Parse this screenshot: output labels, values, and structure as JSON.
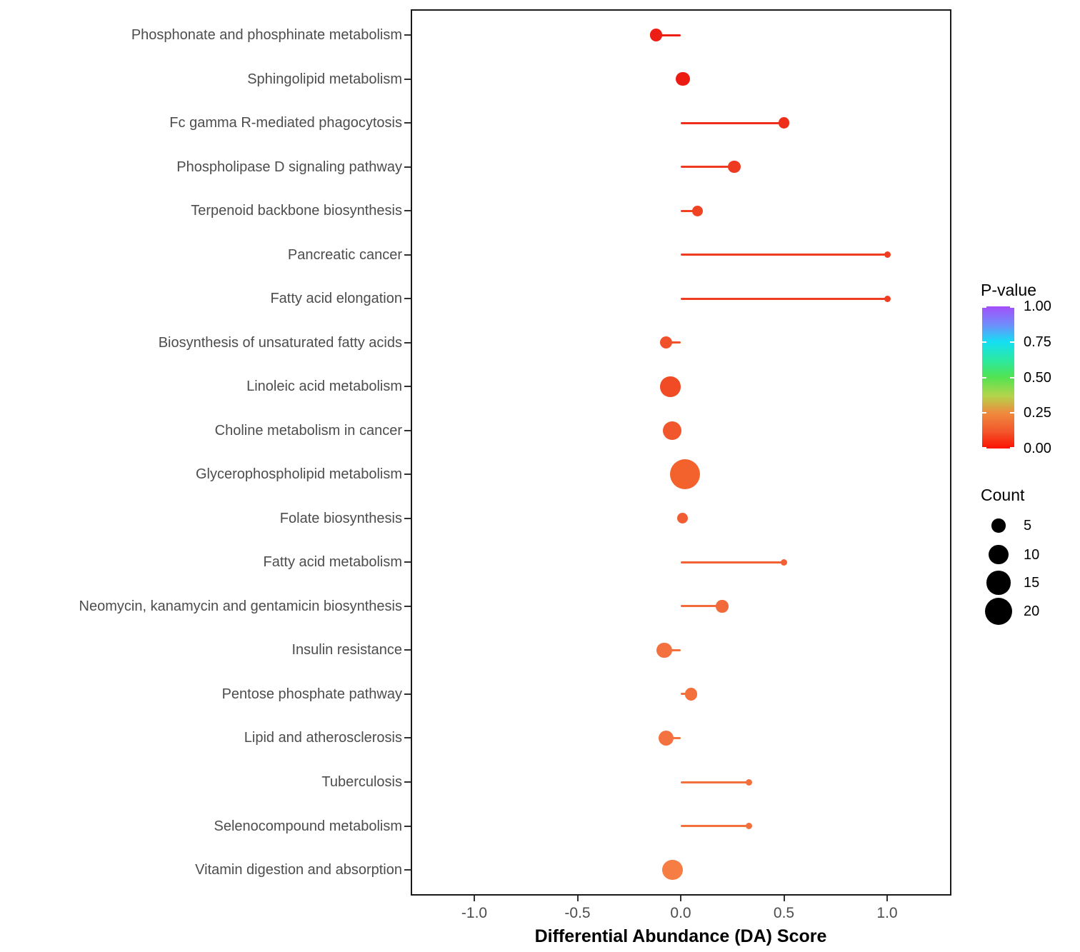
{
  "chart_data": {
    "type": "scatter",
    "style": "lollipop",
    "title": "",
    "xlabel": "Differential Abundance (DA) Score",
    "ylabel": "",
    "xlim": [
      -1.31,
      1.31
    ],
    "x_ticks": [
      -1.0,
      -0.5,
      0.0,
      0.5,
      1.0
    ],
    "x_tick_labels": [
      "-1.0",
      "-0.5",
      "0.0",
      "0.5",
      "1.0"
    ],
    "grid": false,
    "legend_position": "right",
    "rows": [
      {
        "pathway": "Phosphonate and phosphinate metabolism",
        "da_score": -0.12,
        "count": 4,
        "color": "#ed1e13"
      },
      {
        "pathway": "Sphingolipid metabolism",
        "da_score": 0.01,
        "count": 5,
        "color": "#ec1c12"
      },
      {
        "pathway": "Fc gamma R-mediated phagocytosis",
        "da_score": 0.5,
        "count": 3,
        "color": "#ee2d1a"
      },
      {
        "pathway": "Phospholipase D signaling pathway",
        "da_score": 0.26,
        "count": 4,
        "color": "#ee3a21"
      },
      {
        "pathway": "Terpenoid backbone biosynthesis",
        "da_score": 0.08,
        "count": 3,
        "color": "#ef4323"
      },
      {
        "pathway": "Pancreatic cancer",
        "da_score": 1.0,
        "count": 1,
        "color": "#f03c20"
      },
      {
        "pathway": "Fatty acid elongation",
        "da_score": 1.0,
        "count": 1,
        "color": "#f03c20"
      },
      {
        "pathway": "Biosynthesis of unsaturated fatty acids",
        "da_score": -0.07,
        "count": 4,
        "color": "#f0512a"
      },
      {
        "pathway": "Linoleic acid metabolism",
        "da_score": -0.05,
        "count": 11,
        "color": "#f04b25"
      },
      {
        "pathway": "Choline metabolism in cancer",
        "da_score": -0.04,
        "count": 9,
        "color": "#f1562c"
      },
      {
        "pathway": "Glycerophospholipid metabolism",
        "da_score": 0.02,
        "count": 24,
        "color": "#f3612c"
      },
      {
        "pathway": "Folate biosynthesis",
        "da_score": 0.01,
        "count": 3,
        "color": "#f15e33"
      },
      {
        "pathway": "Fatty acid metabolism",
        "da_score": 0.5,
        "count": 1,
        "color": "#f26134"
      },
      {
        "pathway": "Neomycin, kanamycin and gentamicin biosynthesis",
        "da_score": 0.2,
        "count": 4,
        "color": "#f2693a"
      },
      {
        "pathway": "Insulin resistance",
        "da_score": -0.08,
        "count": 6,
        "color": "#f4713f"
      },
      {
        "pathway": "Pentose phosphate pathway",
        "da_score": 0.05,
        "count": 4,
        "color": "#f36f3b"
      },
      {
        "pathway": "Lipid and atherosclerosis",
        "da_score": -0.07,
        "count": 6,
        "color": "#f47240"
      },
      {
        "pathway": "Tuberculosis",
        "da_score": 0.33,
        "count": 1,
        "color": "#f3703d"
      },
      {
        "pathway": "Selenocompound metabolism",
        "da_score": 0.33,
        "count": 1,
        "color": "#f3703d"
      },
      {
        "pathway": "Vitamin digestion and absorption",
        "da_score": -0.04,
        "count": 11,
        "color": "#f67e45"
      }
    ]
  },
  "legend": {
    "pvalue": {
      "title": "P-value",
      "tick_labels": [
        "1.00",
        "0.75",
        "0.50",
        "0.25",
        "0.00"
      ],
      "gradient_stops": [
        "#fb1200 0%",
        "#f2572b 12%",
        "#ef8a3e 25%",
        "#b4d44b 37%",
        "#52e351 50%",
        "#2ce9a0 62%",
        "#14dff3 75%",
        "#6f8efb 87%",
        "#a44ffa 100%"
      ]
    },
    "count": {
      "title": "Count",
      "items": [
        {
          "label": "5",
          "value": 5
        },
        {
          "label": "10",
          "value": 10
        },
        {
          "label": "15",
          "value": 15
        },
        {
          "label": "20",
          "value": 20
        }
      ]
    }
  }
}
